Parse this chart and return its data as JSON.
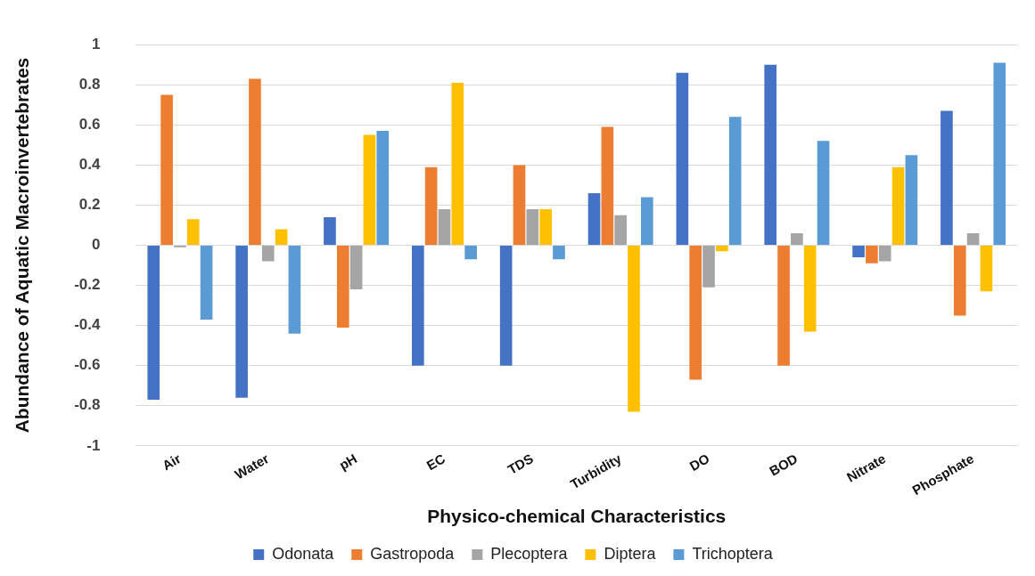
{
  "chart_data": {
    "type": "bar",
    "xlabel": "Physico-chemical Characteristics",
    "ylabel": "Abundance of Aquatic Macroinvertebrates",
    "categories": [
      "Air",
      "Water",
      "pH",
      "EC",
      "TDS",
      "Turbidity",
      "DO",
      "BOD",
      "Nitrate",
      "Phosphate"
    ],
    "series": [
      {
        "name": "Odonata",
        "color": "#4472c4",
        "values": [
          -0.77,
          -0.76,
          0.14,
          -0.6,
          -0.6,
          0.26,
          0.86,
          0.9,
          -0.06,
          0.67
        ]
      },
      {
        "name": "Gastropoda",
        "color": "#ed7d31",
        "values": [
          0.75,
          0.83,
          -0.41,
          0.39,
          0.4,
          0.59,
          -0.67,
          -0.6,
          -0.09,
          -0.35
        ]
      },
      {
        "name": "Plecoptera",
        "color": "#a5a5a5",
        "values": [
          -0.01,
          -0.08,
          -0.22,
          0.18,
          0.18,
          0.15,
          -0.21,
          0.06,
          -0.08,
          0.06
        ]
      },
      {
        "name": "Diptera",
        "color": "#ffc000",
        "values": [
          0.13,
          0.08,
          0.55,
          0.81,
          0.18,
          -0.83,
          -0.03,
          -0.43,
          0.39,
          -0.23
        ]
      },
      {
        "name": "Trichoptera",
        "color": "#5b9bd5",
        "values": [
          -0.37,
          -0.44,
          0.57,
          -0.07,
          -0.07,
          0.24,
          0.64,
          0.52,
          0.45,
          0.91
        ]
      }
    ],
    "ylim": [
      -1,
      1
    ],
    "yticks": [
      -1,
      -0.8,
      -0.6,
      -0.4,
      -0.2,
      0,
      0.2,
      0.4,
      0.6,
      0.8,
      1
    ],
    "grid": "y",
    "legend": "bottom"
  }
}
